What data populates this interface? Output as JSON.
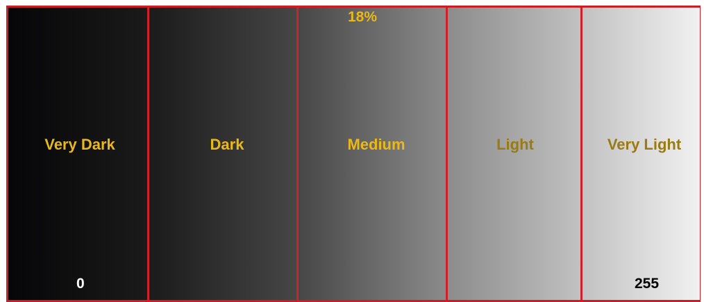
{
  "scale": {
    "zones": [
      {
        "label": "Very Dark",
        "color": "#e8b81c"
      },
      {
        "label": "Dark",
        "color": "#e8b81c"
      },
      {
        "label": "Medium",
        "color": "#e8b81c"
      },
      {
        "label": "Light",
        "color": "#9a7a12"
      },
      {
        "label": "Very Light",
        "color": "#9a7a12"
      }
    ],
    "middle_gray_label": "18%",
    "min_value": "0",
    "max_value": "255",
    "divider_color": "#d0202a",
    "min_value_color": "#ffffff",
    "max_value_color": "#000000"
  }
}
